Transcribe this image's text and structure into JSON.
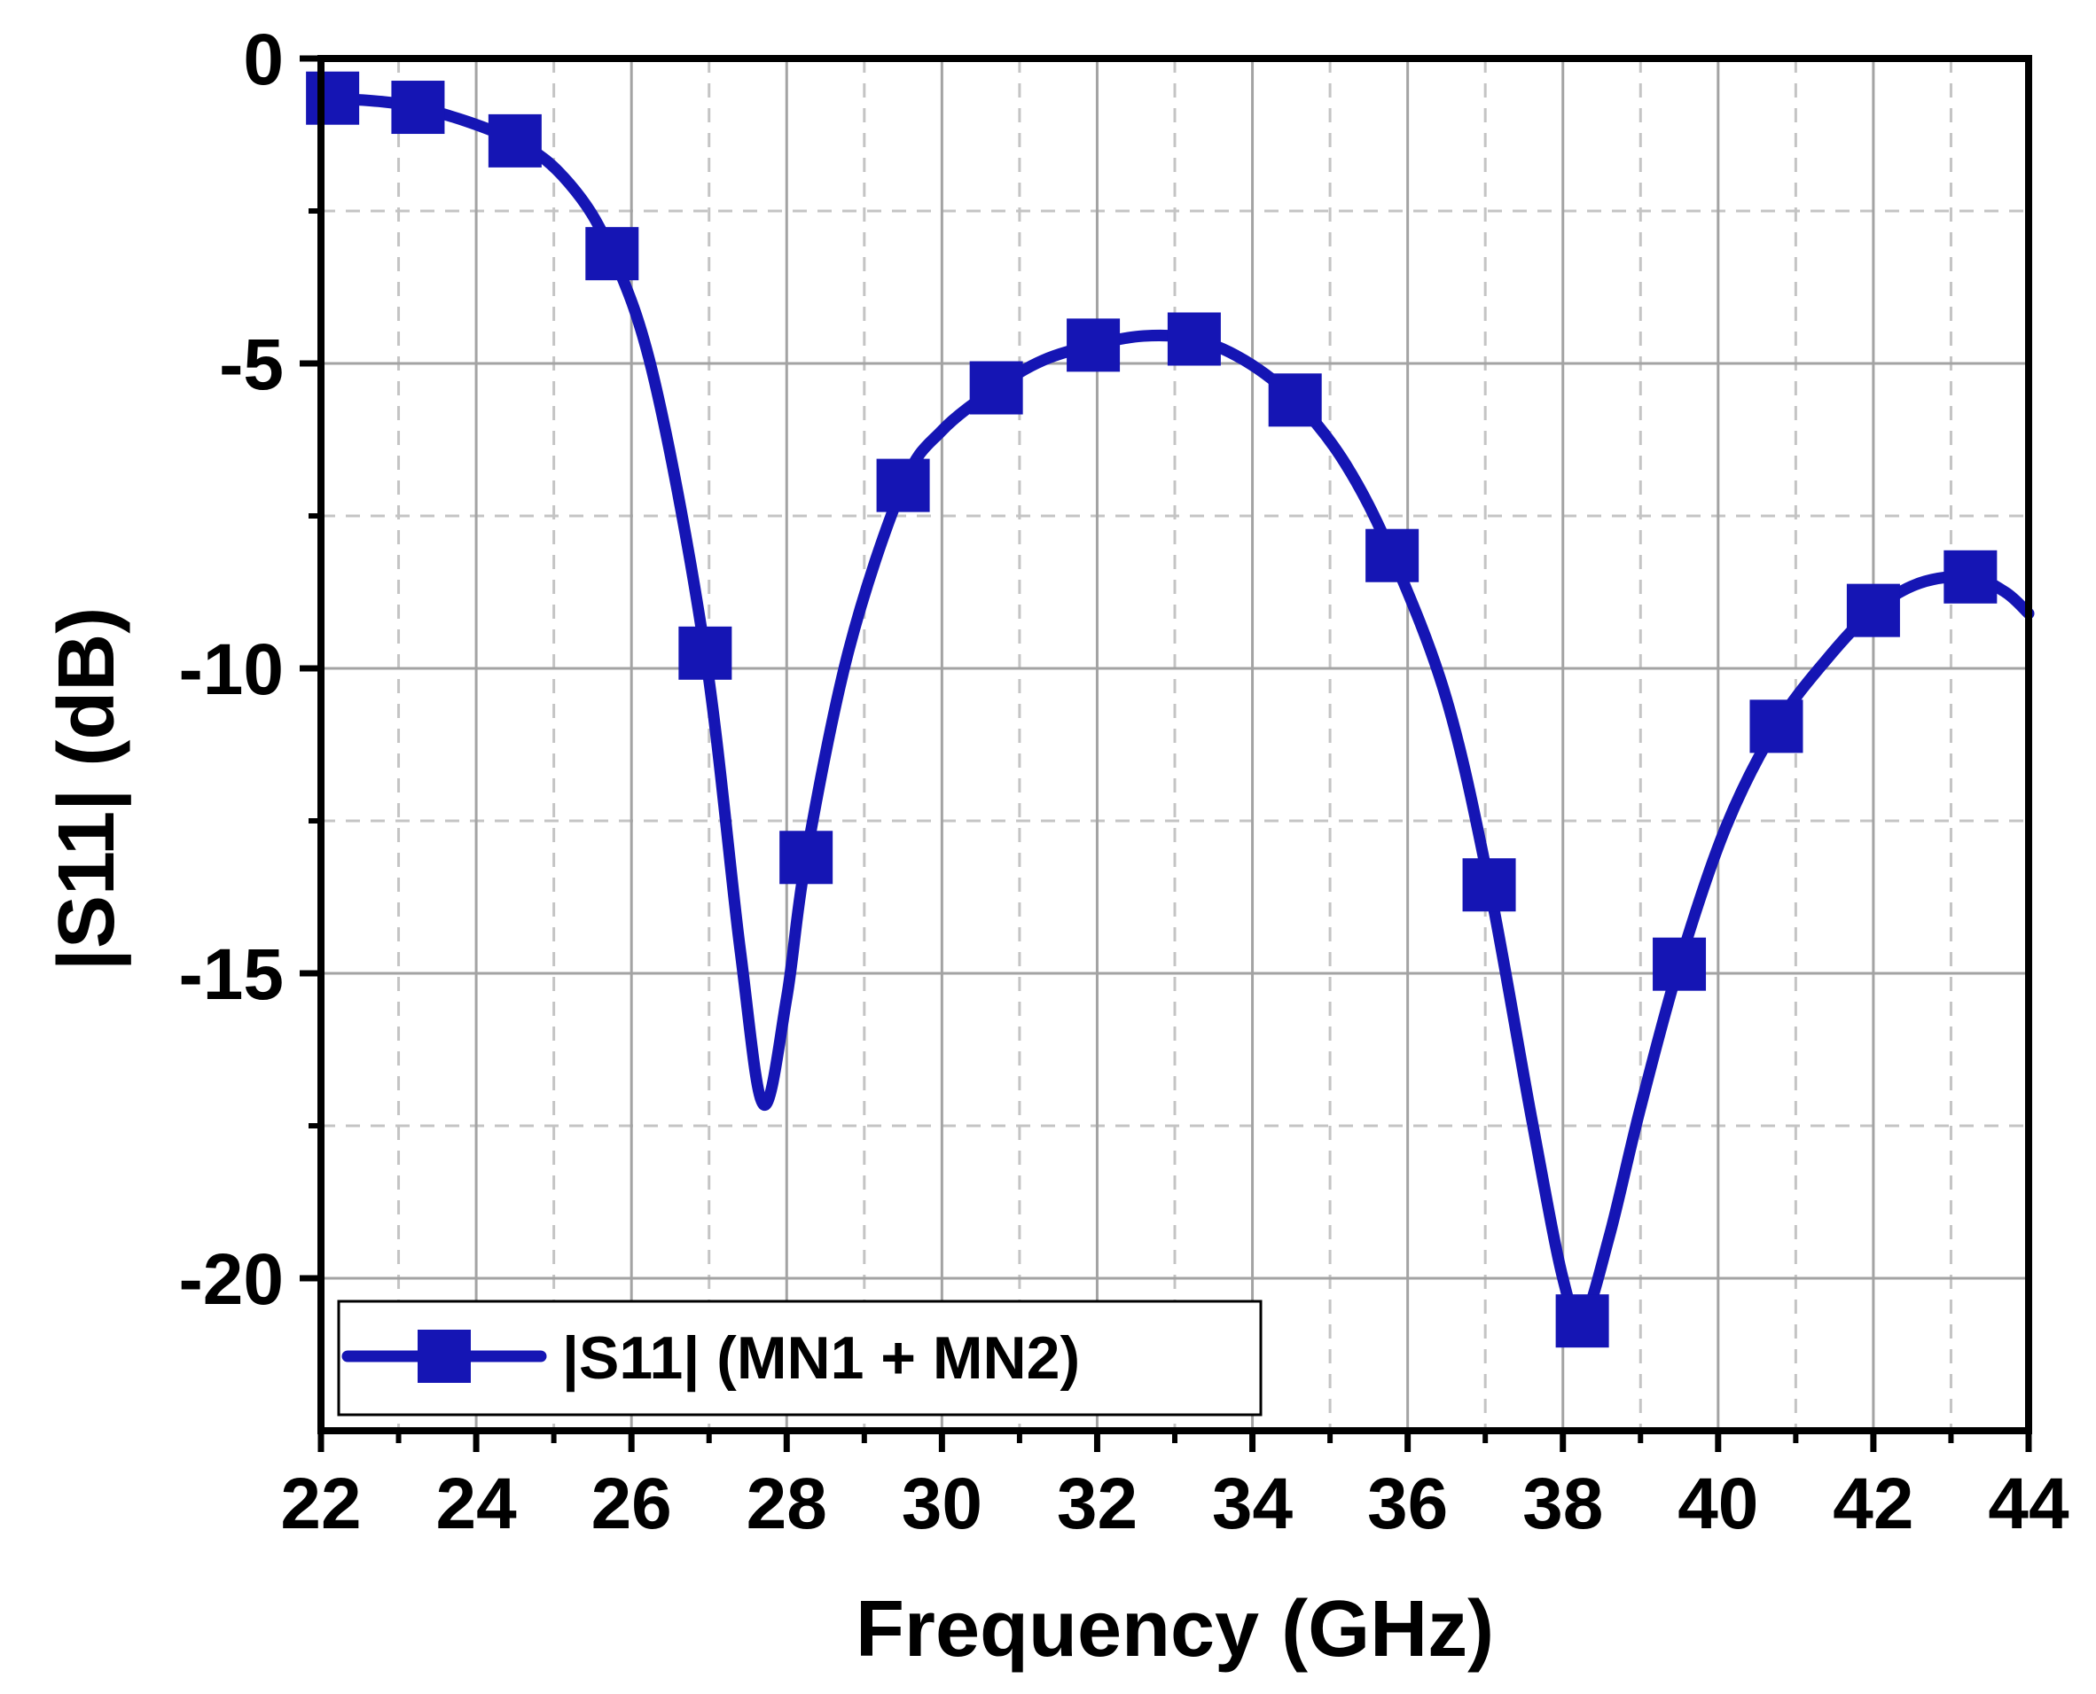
{
  "chart_data": {
    "type": "line",
    "xlabel": "Frequency (GHz)",
    "ylabel": "|S11| (dB)",
    "xlim": [
      22,
      44
    ],
    "ylim": [
      -22.5,
      0
    ],
    "x_ticks": [
      22,
      24,
      26,
      28,
      30,
      32,
      34,
      36,
      38,
      40,
      42,
      44
    ],
    "x_tick_labels": [
      "22",
      "24",
      "26",
      "28",
      "30",
      "32",
      "34",
      "36",
      "38",
      "40",
      "42",
      "44"
    ],
    "y_ticks": [
      0,
      -5,
      -10,
      -15,
      -20
    ],
    "y_tick_labels": [
      "0",
      "-5",
      "-10",
      "-15",
      "-20"
    ],
    "grid": true,
    "legend_position": "bottom-left",
    "series": [
      {
        "name": "|S11| (MN1 + MN2)",
        "color": "#1515b4",
        "marker": "square",
        "marker_x": [
          22.15,
          23.25,
          24.5,
          25.75,
          26.95,
          28.25,
          29.5,
          30.7,
          31.95,
          33.25,
          34.55,
          35.8,
          37.05,
          38.25,
          39.5,
          40.75,
          42.0,
          43.25
        ],
        "marker_y": [
          -0.65,
          -0.8,
          -1.35,
          -3.2,
          -9.75,
          -13.1,
          -7.0,
          -5.4,
          -4.7,
          -4.6,
          -5.6,
          -8.15,
          -13.55,
          -20.7,
          -14.85,
          -10.95,
          -9.05,
          -8.5
        ],
        "curve_x": [
          22.0,
          22.15,
          23.25,
          24.5,
          25.2,
          25.75,
          26.3,
          26.95,
          27.4,
          27.7,
          28.0,
          28.25,
          28.8,
          29.5,
          30.0,
          30.7,
          31.3,
          31.95,
          32.6,
          33.25,
          33.9,
          34.55,
          35.2,
          35.8,
          36.5,
          37.05,
          37.6,
          38.0,
          38.25,
          38.6,
          39.0,
          39.5,
          40.1,
          40.75,
          41.4,
          42.0,
          42.6,
          43.25,
          43.7,
          44.0
        ],
        "curve_y": [
          -0.65,
          -0.65,
          -0.8,
          -1.35,
          -2.05,
          -3.2,
          -5.3,
          -9.75,
          -14.6,
          -17.15,
          -15.4,
          -13.1,
          -9.7,
          -7.0,
          -6.1,
          -5.4,
          -4.95,
          -4.7,
          -4.55,
          -4.6,
          -4.95,
          -5.6,
          -6.65,
          -8.15,
          -10.5,
          -13.55,
          -17.4,
          -20.0,
          -20.7,
          -19.3,
          -17.2,
          -14.85,
          -12.6,
          -10.95,
          -9.85,
          -9.05,
          -8.6,
          -8.5,
          -8.75,
          -9.1
        ]
      }
    ]
  }
}
